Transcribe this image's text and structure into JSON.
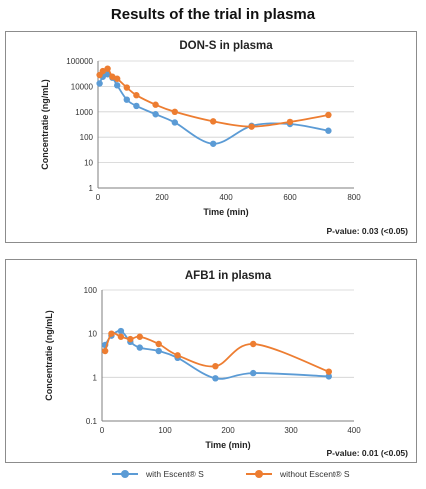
{
  "title": "Results of the trial in plasma",
  "colors": {
    "with": "#5b9bd5",
    "without": "#ed7d31",
    "grid": "#d0d0d0",
    "axis": "#7f7f7f"
  },
  "legend": {
    "with": "with Escent® S",
    "without": "without Escent® S"
  },
  "chart_data": [
    {
      "type": "line",
      "title": "DON-S in plasma",
      "xlabel": "Time (min)",
      "ylabel": "Concentratie (ng/mL)",
      "yscale": "log",
      "xlim": [
        0,
        800
      ],
      "xticks": [
        0,
        200,
        400,
        600,
        800
      ],
      "ylim": [
        1,
        100000
      ],
      "yticks": [
        1,
        10,
        100,
        1000,
        10000,
        100000
      ],
      "ytick_labels": [
        "1",
        "10",
        "100",
        "1000",
        "10000",
        "100000"
      ],
      "grid": "horizontal",
      "annotation": "P-value: 0.03 (<0.05)",
      "series": [
        {
          "name": "with Escent® S",
          "x": [
            5,
            15,
            30,
            45,
            60,
            90,
            120,
            180,
            240,
            360,
            480,
            600,
            720
          ],
          "y": [
            13000,
            24000,
            30000,
            22000,
            11000,
            3000,
            1700,
            800,
            380,
            55,
            280,
            330,
            180
          ]
        },
        {
          "name": "without Escent® S",
          "x": [
            5,
            15,
            30,
            45,
            60,
            90,
            120,
            180,
            240,
            360,
            480,
            600,
            720
          ],
          "y": [
            28000,
            40000,
            50000,
            24000,
            20000,
            9000,
            4500,
            1900,
            1000,
            420,
            260,
            400,
            750
          ]
        }
      ]
    },
    {
      "type": "line",
      "title": "AFB1 in plasma",
      "xlabel": "Time (min)",
      "ylabel": "Concentratie (ng/mL)",
      "yscale": "log",
      "xlim": [
        0,
        400
      ],
      "xticks": [
        0,
        100,
        200,
        300,
        400
      ],
      "ylim": [
        0.1,
        100
      ],
      "yticks": [
        0.1,
        1,
        10,
        100
      ],
      "ytick_labels": [
        "0.1",
        "1",
        "10",
        "100"
      ],
      "grid": "horizontal",
      "annotation": "P-value: 0.01 (<0.05)",
      "series": [
        {
          "name": "with Escent® S",
          "x": [
            5,
            15,
            30,
            45,
            60,
            90,
            120,
            180,
            240,
            360
          ],
          "y": [
            5.5,
            9,
            11.5,
            6.5,
            4.8,
            4,
            2.8,
            0.95,
            1.25,
            1.05
          ]
        },
        {
          "name": "without Escent® S",
          "x": [
            5,
            15,
            30,
            45,
            60,
            90,
            120,
            180,
            240,
            360
          ],
          "y": [
            4,
            10,
            8.5,
            7.5,
            8.5,
            5.8,
            3.2,
            1.8,
            5.8,
            1.35
          ]
        }
      ]
    }
  ]
}
